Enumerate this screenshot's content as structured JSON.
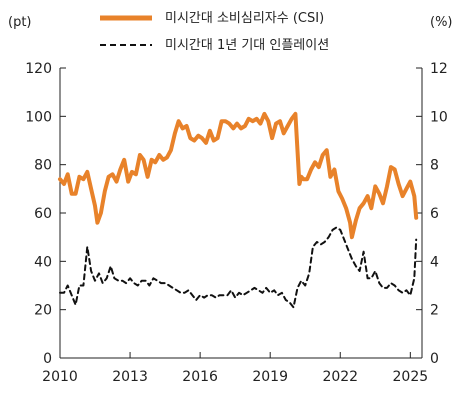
{
  "chart_data": {
    "type": "line",
    "title": "",
    "left_axis_unit": "(pt)",
    "right_axis_unit": "(%)",
    "x_ticks": [
      "2010",
      "2013",
      "2016",
      "2019",
      "2022",
      "2025"
    ],
    "x_range": [
      2010,
      2025.5
    ],
    "left_ylim": [
      0,
      120
    ],
    "left_ticks": [
      "0",
      "20",
      "40",
      "60",
      "80",
      "100",
      "120"
    ],
    "right_ylim": [
      0,
      12
    ],
    "right_ticks": [
      "0",
      "2",
      "4",
      "6",
      "8",
      "10",
      "12"
    ],
    "legend_position": "top-center",
    "series": [
      {
        "name": "미시간대 소비심리자수 (CSI)",
        "axis": "left",
        "color": "#E8822A",
        "style": "solid",
        "x": [
          2010.0,
          2010.17,
          2010.33,
          2010.5,
          2010.67,
          2010.83,
          2011.0,
          2011.17,
          2011.33,
          2011.5,
          2011.6,
          2011.75,
          2011.92,
          2012.08,
          2012.25,
          2012.42,
          2012.58,
          2012.75,
          2012.92,
          2013.08,
          2013.25,
          2013.42,
          2013.58,
          2013.75,
          2013.92,
          2014.08,
          2014.25,
          2014.42,
          2014.58,
          2014.75,
          2014.92,
          2015.08,
          2015.25,
          2015.42,
          2015.58,
          2015.75,
          2015.92,
          2016.08,
          2016.25,
          2016.42,
          2016.58,
          2016.75,
          2016.92,
          2017.08,
          2017.25,
          2017.42,
          2017.58,
          2017.75,
          2017.92,
          2018.08,
          2018.25,
          2018.42,
          2018.58,
          2018.75,
          2018.92,
          2019.08,
          2019.25,
          2019.42,
          2019.58,
          2019.75,
          2019.92,
          2020.08,
          2020.25,
          2020.33,
          2020.42,
          2020.58,
          2020.75,
          2020.92,
          2021.08,
          2021.25,
          2021.42,
          2021.58,
          2021.75,
          2021.92,
          2022.08,
          2022.25,
          2022.42,
          2022.5,
          2022.67,
          2022.83,
          2023.0,
          2023.17,
          2023.33,
          2023.5,
          2023.67,
          2023.83,
          2024.0,
          2024.17,
          2024.33,
          2024.5,
          2024.67,
          2024.83,
          2025.0,
          2025.17,
          2025.25
        ],
        "values": [
          74,
          72,
          76,
          68,
          68,
          75,
          74,
          77,
          70,
          63,
          56,
          60,
          69,
          75,
          76,
          73,
          78,
          82,
          73,
          77,
          76,
          84,
          82,
          75,
          82,
          81,
          84,
          82,
          83,
          86,
          93,
          98,
          95,
          96,
          91,
          90,
          92,
          91,
          89,
          94,
          90,
          91,
          98,
          98,
          97,
          95,
          97,
          95,
          96,
          99,
          98,
          99,
          97,
          101,
          98,
          91,
          97,
          98,
          93,
          96,
          99,
          101,
          72,
          75,
          74,
          74,
          78,
          81,
          79,
          84,
          86,
          75,
          78,
          69,
          66,
          62,
          56,
          50,
          57,
          62,
          64,
          67,
          62,
          71,
          68,
          64,
          71,
          79,
          78,
          72,
          67,
          70,
          73,
          67,
          58
        ]
      },
      {
        "name": "미시간대 1년 기대 인플레이션",
        "axis": "right",
        "color": "#111111",
        "style": "dashed",
        "x": [
          2010.0,
          2010.17,
          2010.33,
          2010.5,
          2010.67,
          2010.83,
          2011.0,
          2011.17,
          2011.33,
          2011.5,
          2011.67,
          2011.83,
          2012.0,
          2012.17,
          2012.33,
          2012.5,
          2012.67,
          2012.83,
          2013.0,
          2013.17,
          2013.33,
          2013.5,
          2013.67,
          2013.83,
          2014.0,
          2014.17,
          2014.33,
          2014.5,
          2014.67,
          2014.83,
          2015.0,
          2015.17,
          2015.33,
          2015.5,
          2015.67,
          2015.83,
          2016.0,
          2016.17,
          2016.33,
          2016.5,
          2016.67,
          2016.83,
          2017.0,
          2017.17,
          2017.33,
          2017.5,
          2017.67,
          2017.83,
          2018.0,
          2018.17,
          2018.33,
          2018.5,
          2018.67,
          2018.83,
          2019.0,
          2019.17,
          2019.33,
          2019.5,
          2019.67,
          2019.83,
          2020.0,
          2020.17,
          2020.33,
          2020.5,
          2020.67,
          2020.83,
          2021.0,
          2021.17,
          2021.33,
          2021.5,
          2021.67,
          2021.83,
          2022.0,
          2022.17,
          2022.33,
          2022.5,
          2022.67,
          2022.83,
          2023.0,
          2023.17,
          2023.33,
          2023.5,
          2023.67,
          2023.83,
          2024.0,
          2024.17,
          2024.33,
          2024.5,
          2024.67,
          2024.83,
          2025.0,
          2025.17,
          2025.25
        ],
        "values": [
          2.7,
          2.7,
          3.0,
          2.6,
          2.2,
          3.0,
          3.0,
          4.6,
          3.6,
          3.2,
          3.5,
          3.1,
          3.3,
          3.8,
          3.3,
          3.2,
          3.2,
          3.1,
          3.3,
          3.1,
          3.0,
          3.2,
          3.2,
          3.0,
          3.3,
          3.2,
          3.1,
          3.1,
          3.0,
          2.9,
          2.8,
          2.7,
          2.7,
          2.8,
          2.6,
          2.4,
          2.6,
          2.5,
          2.6,
          2.6,
          2.5,
          2.6,
          2.6,
          2.6,
          2.8,
          2.5,
          2.7,
          2.6,
          2.7,
          2.8,
          2.9,
          2.8,
          2.7,
          2.9,
          2.7,
          2.8,
          2.6,
          2.7,
          2.4,
          2.3,
          2.1,
          2.9,
          3.2,
          3.0,
          3.5,
          4.6,
          4.8,
          4.7,
          4.8,
          5.0,
          5.3,
          5.4,
          5.3,
          4.9,
          4.5,
          4.1,
          3.8,
          3.6,
          4.4,
          3.3,
          3.3,
          3.6,
          3.1,
          2.9,
          2.9,
          3.1,
          3.0,
          2.8,
          2.7,
          2.8,
          2.6,
          3.3,
          4.9
        ]
      }
    ]
  }
}
